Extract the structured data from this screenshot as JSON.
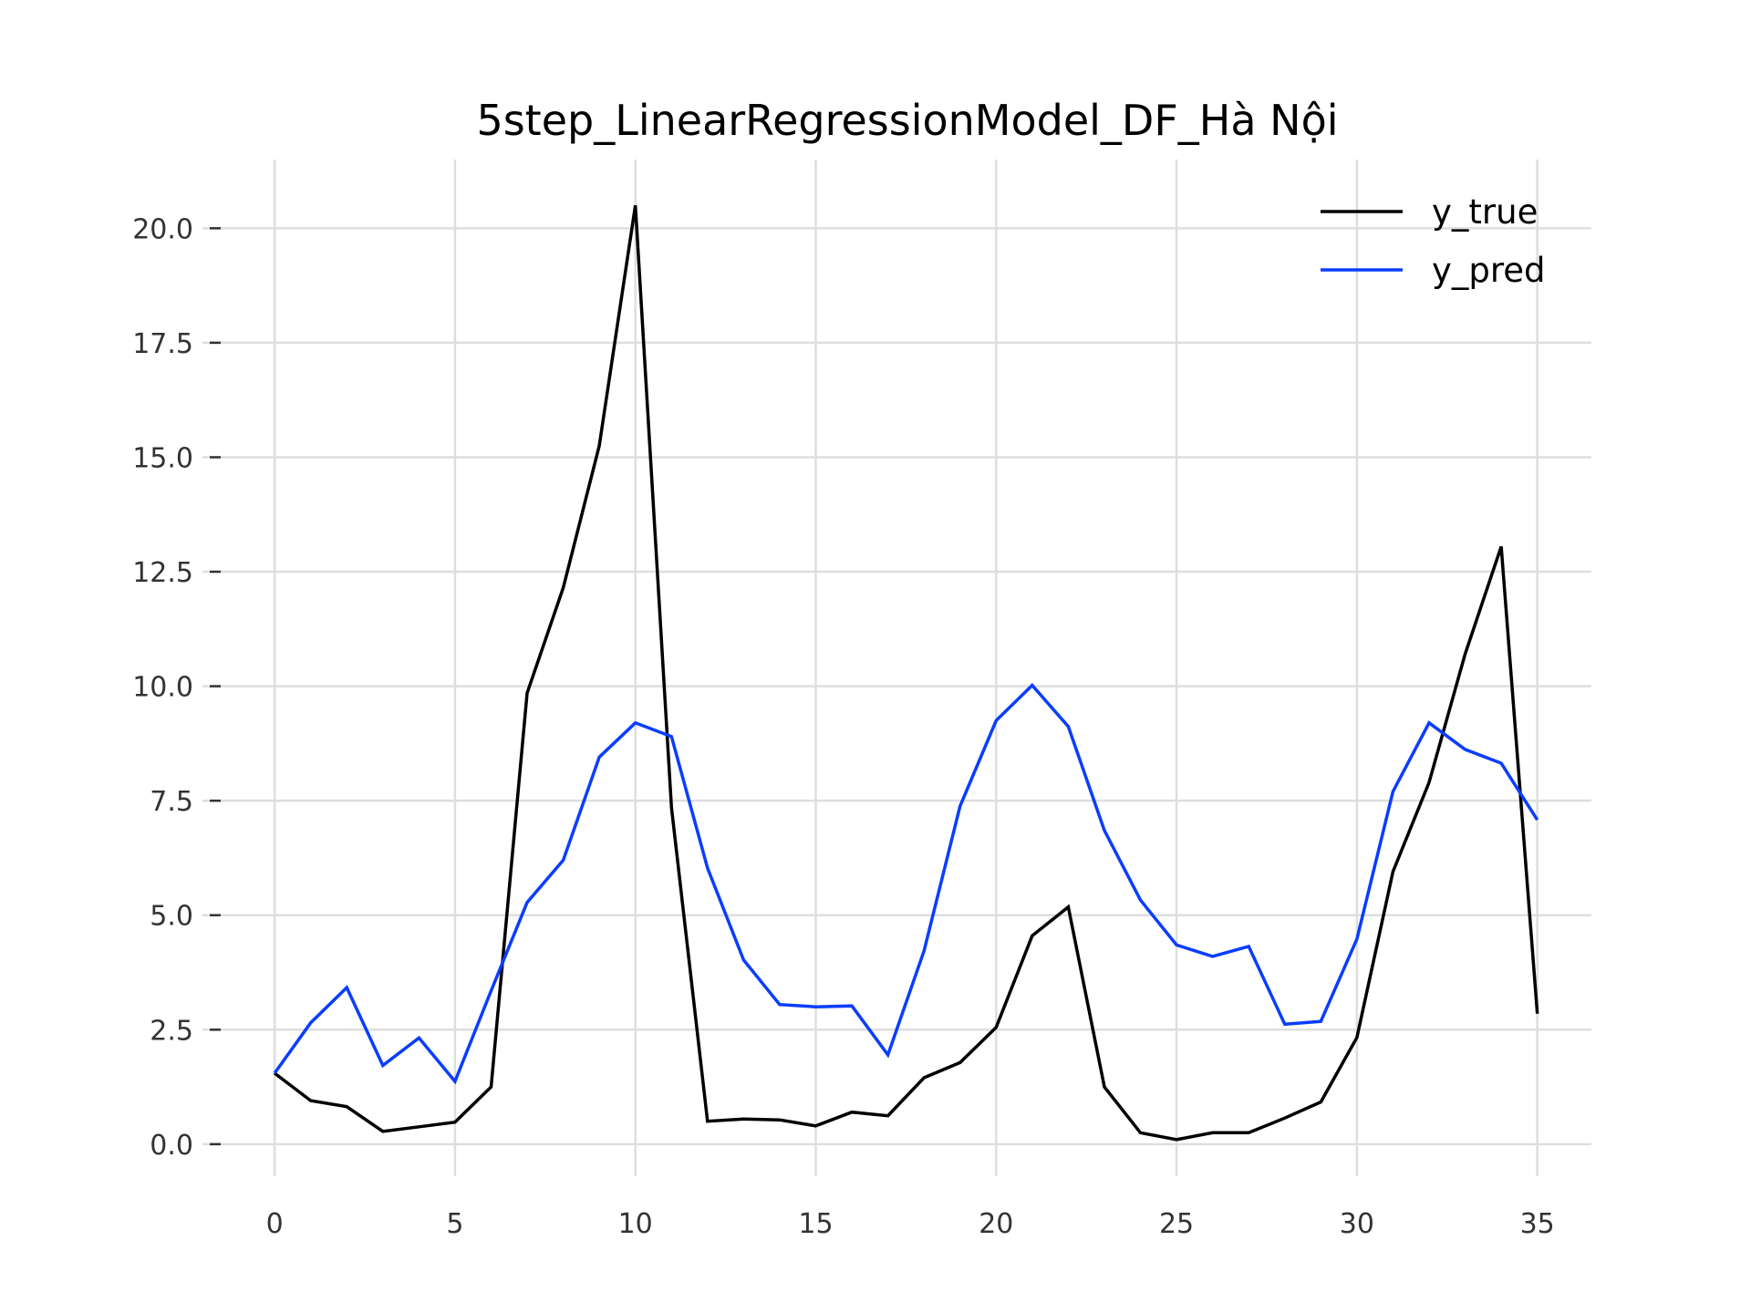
{
  "chart_data": {
    "type": "line",
    "title": "5step_LinearRegressionModel_DF_Hà Nội",
    "xlabel": "",
    "ylabel": "",
    "xlim": [
      -2,
      36.5
    ],
    "ylim": [
      -0.7,
      21.5
    ],
    "x_ticks": [
      0,
      5,
      10,
      15,
      20,
      25,
      30,
      35
    ],
    "y_ticks": [
      0.0,
      2.5,
      5.0,
      7.5,
      10.0,
      12.5,
      15.0,
      17.5,
      20.0
    ],
    "x_tick_labels": [
      "0",
      "5",
      "10",
      "15",
      "20",
      "25",
      "30",
      "35"
    ],
    "y_tick_labels": [
      "0.0",
      "2.5",
      "5.0",
      "7.5",
      "10.0",
      "12.5",
      "15.0",
      "17.5",
      "20.0"
    ],
    "grid": true,
    "legend": {
      "position": "top-right"
    },
    "x": [
      0,
      1,
      2,
      3,
      4,
      5,
      6,
      7,
      8,
      9,
      10,
      11,
      12,
      13,
      14,
      15,
      16,
      17,
      18,
      19,
      20,
      21,
      22,
      23,
      24,
      25,
      26,
      27,
      28,
      29,
      30,
      31,
      32,
      33,
      34,
      35
    ],
    "series": [
      {
        "name": "y_true",
        "color": "#000000",
        "values": [
          1.55,
          0.95,
          0.82,
          0.28,
          0.38,
          0.48,
          1.25,
          9.85,
          12.15,
          15.25,
          20.5,
          7.35,
          0.5,
          0.55,
          0.53,
          0.4,
          0.7,
          0.62,
          1.45,
          1.78,
          2.55,
          4.55,
          5.18,
          1.25,
          0.25,
          0.1,
          0.25,
          0.25,
          0.57,
          0.92,
          2.33,
          5.95,
          7.9,
          10.7,
          13.05,
          2.85
        ]
      },
      {
        "name": "y_pred",
        "color": "#0a3dff",
        "values": [
          1.55,
          2.65,
          3.42,
          1.72,
          2.32,
          1.37,
          3.35,
          5.28,
          6.2,
          8.45,
          9.2,
          8.9,
          6.03,
          4.02,
          3.05,
          3.0,
          3.02,
          1.95,
          4.22,
          7.38,
          9.25,
          10.02,
          9.12,
          6.85,
          5.33,
          4.35,
          4.1,
          4.32,
          2.62,
          2.68,
          4.48,
          7.7,
          9.2,
          8.62,
          8.32,
          7.08
        ]
      }
    ]
  }
}
